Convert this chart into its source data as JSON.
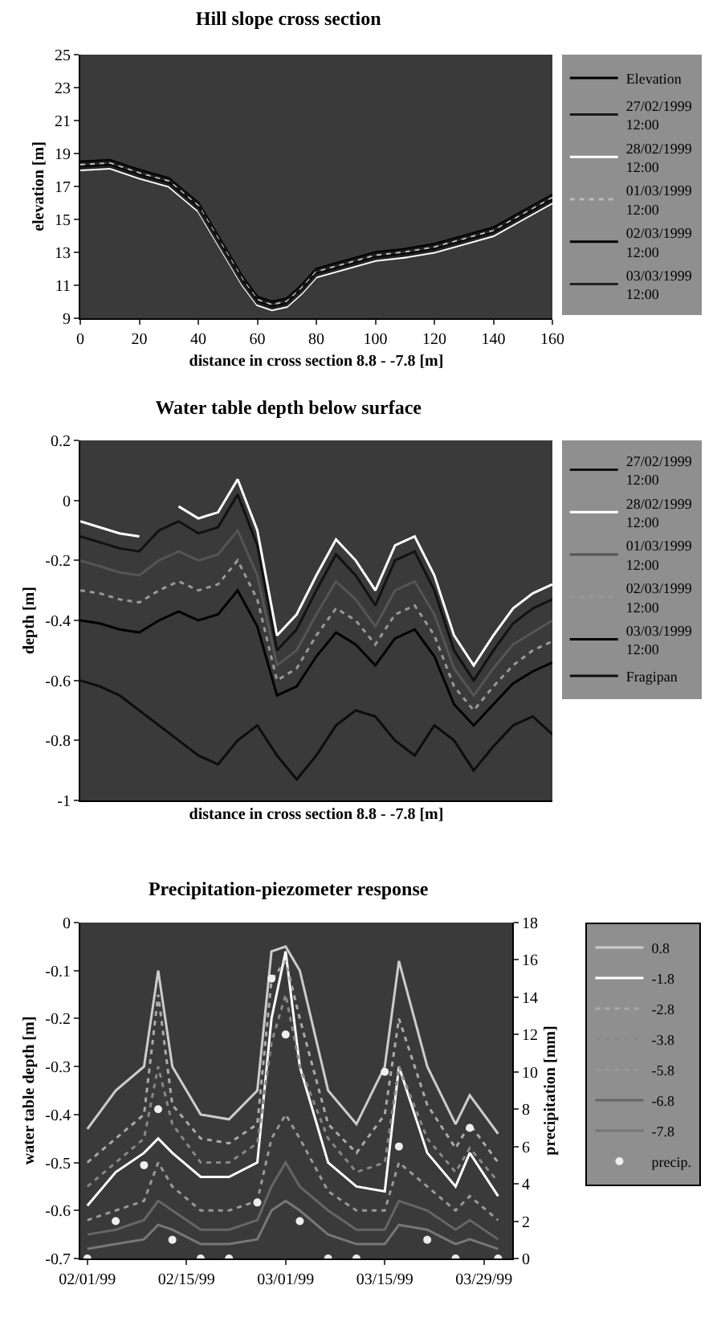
{
  "chart_data": [
    {
      "type": "line",
      "title": "Hill slope cross section",
      "xlabel": "distance in cross section 8.8 - -7.8 [m]",
      "ylabel": "elevation [m]",
      "xlim": [
        0,
        160
      ],
      "xticks": [
        0,
        20,
        40,
        60,
        80,
        100,
        120,
        140,
        160
      ],
      "ylim": [
        9,
        25
      ],
      "yticks": [
        9,
        11,
        13,
        15,
        17,
        19,
        21,
        23,
        25
      ],
      "legend": "right",
      "x": [
        0,
        10,
        20,
        30,
        40,
        45,
        50,
        55,
        60,
        65,
        70,
        75,
        80,
        90,
        100,
        110,
        120,
        130,
        140,
        150,
        160
      ],
      "series": [
        {
          "name": "Elevation",
          "color": "#000000",
          "values": [
            18.5,
            18.6,
            18,
            17.5,
            16,
            14.5,
            13,
            11.5,
            10.3,
            10,
            10.2,
            11,
            12,
            12.5,
            13,
            13.2,
            13.5,
            14,
            14.5,
            15.5,
            16.5
          ]
        },
        {
          "name": "27/02/1999 12:00",
          "color": "#1a1a1a",
          "values": [
            18.4,
            18.5,
            17.9,
            17.4,
            15.9,
            14.4,
            12.9,
            11.4,
            10.2,
            9.9,
            10.1,
            10.9,
            11.9,
            12.4,
            12.9,
            13.1,
            13.4,
            13.9,
            14.4,
            15.4,
            16.4
          ]
        },
        {
          "name": "28/02/1999 12:00",
          "color": "#ffffff",
          "values": [
            18.0,
            18.1,
            17.5,
            17.0,
            15.5,
            14.0,
            12.5,
            11.0,
            9.8,
            9.5,
            9.7,
            10.5,
            11.5,
            12.0,
            12.5,
            12.7,
            13.0,
            13.5,
            14.0,
            15.0,
            16.0
          ]
        },
        {
          "name": "01/03/1999 12:00",
          "color": "#bbbbbb",
          "line_style": "dotted",
          "values": [
            18.3,
            18.4,
            17.8,
            17.3,
            15.8,
            14.3,
            12.8,
            11.3,
            10.1,
            9.8,
            10,
            10.8,
            11.8,
            12.3,
            12.8,
            13,
            13.3,
            13.8,
            14.3,
            15.3,
            16.3
          ]
        },
        {
          "name": "02/03/1999 12:00",
          "color": "#000000",
          "values": [
            18.2,
            18.3,
            17.7,
            17.2,
            15.7,
            14.2,
            12.7,
            11.2,
            10,
            9.7,
            9.9,
            10.7,
            11.7,
            12.2,
            12.7,
            12.9,
            13.2,
            13.7,
            14.2,
            15.2,
            16.2
          ]
        },
        {
          "name": "03/03/1999 12:00",
          "color": "#222222",
          "values": [
            18.1,
            18.2,
            17.6,
            17.1,
            15.6,
            14.1,
            12.6,
            11.1,
            9.9,
            9.6,
            9.8,
            10.6,
            11.6,
            12.1,
            12.6,
            12.8,
            13.1,
            13.6,
            14.1,
            15.1,
            16.1
          ]
        }
      ]
    },
    {
      "type": "line",
      "title": "Water table depth below surface",
      "xlabel": "distance in cross section 8.8 - -7.8 [m]",
      "ylabel": "depth [m]",
      "ylim": [
        -1,
        0.2
      ],
      "yticks": [
        -1,
        -0.8,
        -0.6,
        -0.4,
        -0.2,
        0,
        0.2
      ],
      "legend": "right",
      "tick_labels": "y",
      "categories": [
        null,
        null,
        null,
        null,
        null,
        null,
        null,
        null,
        null,
        null,
        null,
        null,
        null,
        null,
        null,
        null,
        null,
        null,
        null,
        null,
        null,
        null,
        null,
        null,
        null
      ],
      "series": [
        {
          "name": "27/02/1999 12:00",
          "color": "#111111",
          "values": [
            -0.12,
            -0.14,
            -0.16,
            -0.17,
            -0.1,
            -0.07,
            -0.11,
            -0.09,
            0.02,
            -0.15,
            -0.5,
            -0.43,
            -0.3,
            -0.18,
            -0.25,
            -0.35,
            -0.2,
            -0.17,
            -0.3,
            -0.5,
            -0.6,
            -0.5,
            -0.41,
            -0.36,
            -0.33
          ]
        },
        {
          "name": "28/02/1999 12:00",
          "color": "#ffffff",
          "values": [
            -0.07,
            -0.09,
            -0.11,
            -0.12,
            null,
            -0.02,
            -0.06,
            -0.04,
            0.07,
            -0.1,
            -0.45,
            -0.38,
            -0.25,
            -0.13,
            -0.2,
            -0.3,
            -0.15,
            -0.12,
            -0.25,
            -0.45,
            -0.55,
            -0.45,
            -0.36,
            -0.31,
            -0.28
          ]
        },
        {
          "name": "01/03/1999 12:00",
          "color": "#555555",
          "values": [
            -0.2,
            -0.22,
            -0.24,
            -0.25,
            -0.2,
            -0.17,
            -0.2,
            -0.18,
            -0.1,
            -0.25,
            -0.55,
            -0.5,
            -0.38,
            -0.27,
            -0.33,
            -0.42,
            -0.3,
            -0.27,
            -0.38,
            -0.56,
            -0.65,
            -0.56,
            -0.48,
            -0.44,
            -0.4
          ]
        },
        {
          "name": "02/03/1999 12:00",
          "color": "#999999",
          "line_style": "dotted",
          "values": [
            -0.3,
            -0.31,
            -0.33,
            -0.34,
            -0.3,
            -0.27,
            -0.3,
            -0.28,
            -0.2,
            -0.33,
            -0.6,
            -0.56,
            -0.45,
            -0.36,
            -0.4,
            -0.48,
            -0.38,
            -0.35,
            -0.45,
            -0.62,
            -0.7,
            -0.62,
            -0.55,
            -0.5,
            -0.47
          ]
        },
        {
          "name": "03/03/1999 12:00",
          "color": "#000000",
          "values": [
            -0.4,
            -0.41,
            -0.43,
            -0.44,
            -0.4,
            -0.37,
            -0.4,
            -0.38,
            -0.3,
            -0.42,
            -0.65,
            -0.62,
            -0.52,
            -0.44,
            -0.48,
            -0.55,
            -0.46,
            -0.43,
            -0.52,
            -0.68,
            -0.75,
            -0.68,
            -0.61,
            -0.57,
            -0.54
          ]
        },
        {
          "name": "Fragipan",
          "color": "#0d0d0d",
          "values": [
            -0.6,
            -0.62,
            -0.65,
            -0.7,
            -0.75,
            -0.8,
            -0.85,
            -0.88,
            -0.8,
            -0.75,
            -0.85,
            -0.93,
            -0.85,
            -0.75,
            -0.7,
            -0.72,
            -0.8,
            -0.85,
            -0.75,
            -0.8,
            -0.9,
            -0.82,
            -0.75,
            -0.72,
            -0.78
          ]
        }
      ]
    },
    {
      "type": "line",
      "title": "Precipitation-piezometer response",
      "ylabel": "water table depth [m]",
      "y2label": "precipitation [mm]",
      "legend": "right",
      "xlim": [
        "1999-01-31",
        "1999-04-02"
      ],
      "xticks": [
        {
          "value": "1999-02-01",
          "label": "02/01/99"
        },
        {
          "value": "1999-02-15",
          "label": "02/15/99"
        },
        {
          "value": "1999-03-01",
          "label": "03/01/99"
        },
        {
          "value": "1999-03-15",
          "label": "03/15/99"
        },
        {
          "value": "1999-03-29",
          "label": "03/29/99"
        }
      ],
      "ylim": [
        -0.7,
        0
      ],
      "yticks": [
        -0.7,
        -0.6,
        -0.5,
        -0.4,
        -0.3,
        -0.2,
        -0.1,
        0
      ],
      "y2lim": [
        0,
        18
      ],
      "y2ticks": [
        0,
        2,
        4,
        6,
        8,
        10,
        12,
        14,
        16,
        18
      ],
      "x": [
        "1999-02-01",
        "1999-02-05",
        "1999-02-09",
        "1999-02-11",
        "1999-02-13",
        "1999-02-17",
        "1999-02-21",
        "1999-02-25",
        "1999-02-27",
        "1999-03-01",
        "1999-03-03",
        "1999-03-07",
        "1999-03-11",
        "1999-03-15",
        "1999-03-17",
        "1999-03-21",
        "1999-03-25",
        "1999-03-27",
        "1999-03-31"
      ],
      "series": [
        {
          "name": "0.8",
          "color": "#cccccc",
          "values": [
            -0.43,
            -0.35,
            -0.3,
            -0.1,
            -0.3,
            -0.4,
            -0.41,
            -0.35,
            -0.06,
            -0.05,
            -0.1,
            -0.35,
            -0.42,
            -0.3,
            -0.08,
            -0.3,
            -0.42,
            -0.36,
            -0.44
          ]
        },
        {
          "name": "-1.8",
          "color": "#ffffff",
          "values": [
            -0.59,
            -0.52,
            -0.48,
            -0.45,
            -0.48,
            -0.53,
            -0.53,
            -0.5,
            -0.2,
            -0.06,
            -0.3,
            -0.5,
            -0.55,
            -0.56,
            -0.3,
            -0.48,
            -0.55,
            -0.48,
            -0.57
          ]
        },
        {
          "name": "-2.8",
          "color": "#aaaaaa",
          "line_style": "dotted",
          "values": [
            -0.5,
            -0.45,
            -0.4,
            -0.15,
            -0.38,
            -0.45,
            -0.46,
            -0.42,
            -0.12,
            -0.08,
            -0.2,
            -0.42,
            -0.48,
            -0.4,
            -0.2,
            -0.38,
            -0.47,
            -0.42,
            -0.5
          ]
        },
        {
          "name": "-3.8",
          "color": "#888888",
          "line_style": "dotted",
          "values": [
            -0.55,
            -0.5,
            -0.45,
            -0.3,
            -0.42,
            -0.5,
            -0.5,
            -0.46,
            -0.25,
            -0.15,
            -0.3,
            -0.45,
            -0.52,
            -0.5,
            -0.3,
            -0.45,
            -0.52,
            -0.47,
            -0.54
          ]
        },
        {
          "name": "-5.8",
          "color": "#999999",
          "line_style": "dotted",
          "values": [
            -0.62,
            -0.6,
            -0.58,
            -0.5,
            -0.55,
            -0.6,
            -0.6,
            -0.58,
            -0.45,
            -0.4,
            -0.45,
            -0.56,
            -0.6,
            -0.6,
            -0.5,
            -0.55,
            -0.6,
            -0.57,
            -0.62
          ]
        },
        {
          "name": "-6.8",
          "color": "#666666",
          "values": [
            -0.65,
            -0.64,
            -0.62,
            -0.58,
            -0.6,
            -0.64,
            -0.64,
            -0.62,
            -0.55,
            -0.5,
            -0.55,
            -0.6,
            -0.64,
            -0.64,
            -0.58,
            -0.6,
            -0.64,
            -0.62,
            -0.66
          ]
        },
        {
          "name": "-7.8",
          "color": "#777777",
          "values": [
            -0.68,
            -0.67,
            -0.66,
            -0.63,
            -0.64,
            -0.67,
            -0.67,
            -0.66,
            -0.6,
            -0.58,
            -0.6,
            -0.65,
            -0.67,
            -0.67,
            -0.63,
            -0.64,
            -0.67,
            -0.66,
            -0.68
          ]
        },
        {
          "name": "precip.",
          "type": "scatter",
          "axis": "y2",
          "marker": "circle",
          "color": "#eeeeee",
          "values": [
            0,
            2,
            5,
            8,
            1,
            0,
            0,
            3,
            15,
            12,
            2,
            0,
            0,
            10,
            6,
            1,
            0,
            7,
            0
          ]
        }
      ]
    }
  ]
}
